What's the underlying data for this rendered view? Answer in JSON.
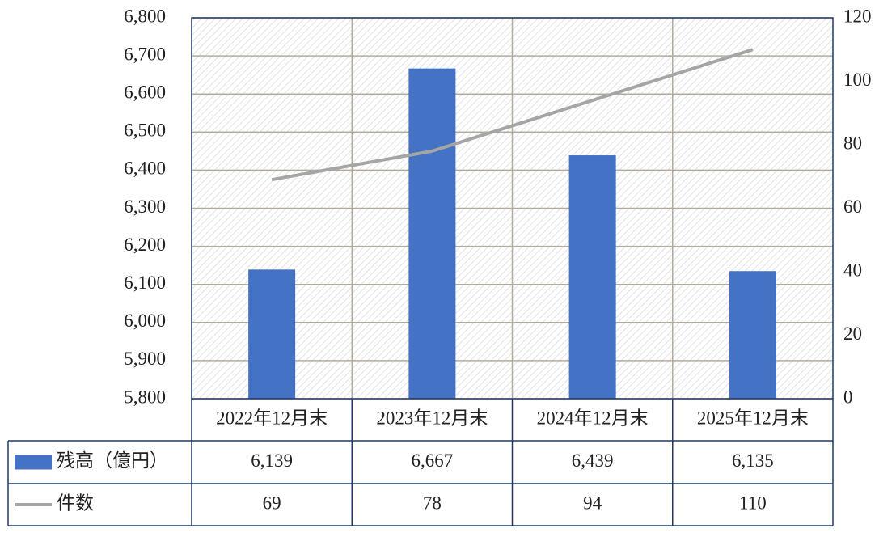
{
  "chart_data": {
    "type": "bar",
    "categories": [
      "2022年12月末",
      "2023年12月末",
      "2024年12月末",
      "2025年12月末"
    ],
    "series": [
      {
        "name": "残高（億円）",
        "type": "bar",
        "color": "#4472c4",
        "values": [
          6139,
          6667,
          6439,
          6135
        ],
        "value_labels": [
          "6,139",
          "6,667",
          "6,439",
          "6,135"
        ]
      },
      {
        "name": "件数",
        "type": "line",
        "axis": "y2",
        "color": "#a5a5a5",
        "values": [
          69,
          78,
          94,
          110
        ]
      }
    ],
    "ylim": [
      5800,
      6800
    ],
    "yticks": [
      {
        "value": 5800,
        "label": "5,800"
      },
      {
        "value": 5900,
        "label": "5,900"
      },
      {
        "value": 6000,
        "label": "6,000"
      },
      {
        "value": 6100,
        "label": "6,100"
      },
      {
        "value": 6200,
        "label": "6,200"
      },
      {
        "value": 6300,
        "label": "6,300"
      },
      {
        "value": 6400,
        "label": "6,400"
      },
      {
        "value": 6500,
        "label": "6,500"
      },
      {
        "value": 6600,
        "label": "6,600"
      },
      {
        "value": 6700,
        "label": "6,700"
      },
      {
        "value": 6800,
        "label": "6,800"
      }
    ],
    "y2lim": [
      0,
      120
    ],
    "y2ticks": [
      0,
      20,
      40,
      60,
      80,
      100,
      120
    ],
    "grid": true
  }
}
